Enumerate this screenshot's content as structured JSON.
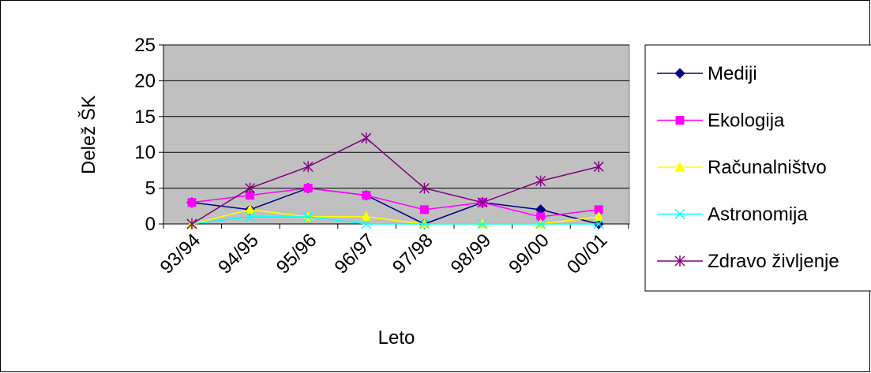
{
  "chart_data": {
    "type": "line",
    "title": "",
    "xlabel": "Leto",
    "ylabel": "Delež ŠK",
    "categories": [
      "93/94",
      "94/95",
      "95/96",
      "96/97",
      "97/98",
      "98/99",
      "99/00",
      "00/01"
    ],
    "ylim": [
      0,
      25
    ],
    "yticks": [
      0,
      5,
      10,
      15,
      20,
      25
    ],
    "grid": true,
    "legend_position": "right",
    "plot_background": "#c0c0c0",
    "series": [
      {
        "name": "Mediji",
        "color": "#000080",
        "marker": "diamond",
        "values": [
          3,
          2,
          5,
          4,
          0,
          3,
          2,
          0
        ]
      },
      {
        "name": "Ekologija",
        "color": "#ff00ff",
        "marker": "square",
        "values": [
          3,
          4,
          5,
          4,
          2,
          3,
          1,
          2
        ]
      },
      {
        "name": "Računalništvo",
        "color": "#ffff00",
        "marker": "triangle",
        "values": [
          0,
          2,
          1,
          1,
          0,
          0,
          0,
          1
        ]
      },
      {
        "name": "Astronomija",
        "color": "#00ffff",
        "marker": "x",
        "values": [
          0,
          1,
          1,
          0,
          0,
          0,
          0,
          0
        ]
      },
      {
        "name": "Zdravo življenje",
        "color": "#800080",
        "marker": "star",
        "values": [
          0,
          5,
          8,
          12,
          5,
          3,
          6,
          8
        ]
      }
    ]
  }
}
